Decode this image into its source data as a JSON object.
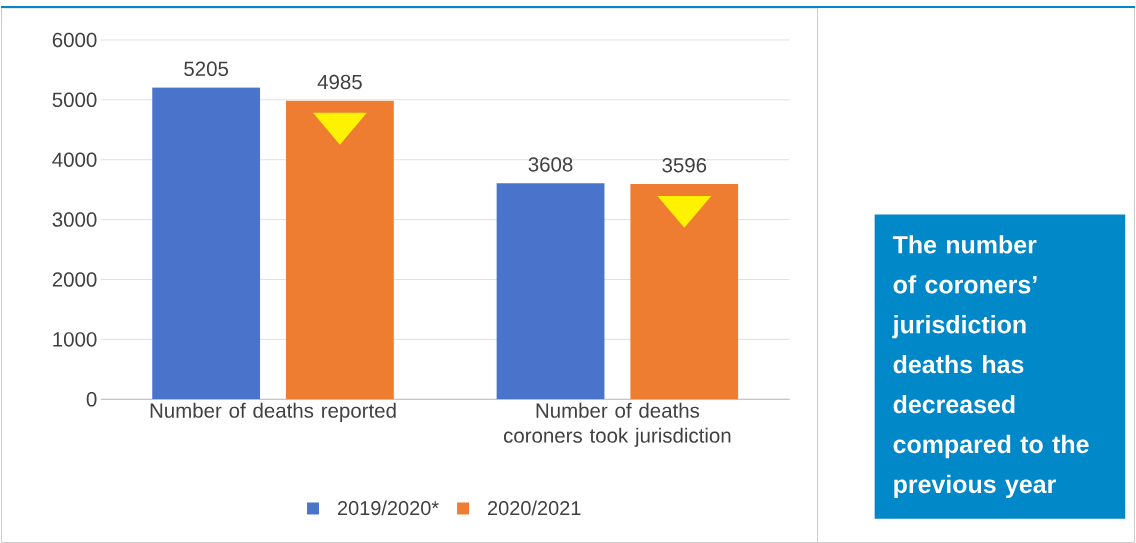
{
  "chart_data": {
    "type": "bar",
    "categories": [
      "Number of deaths reported",
      "Number of deaths coroners took jurisdiction"
    ],
    "series": [
      {
        "name": "2019/2020*",
        "color": "#4a74cc",
        "values": [
          5205,
          3608
        ]
      },
      {
        "name": "2020/2021",
        "color": "#ee7d32",
        "values": [
          4985,
          3596
        ]
      }
    ],
    "ylim": [
      0,
      6000
    ],
    "yticks": [
      0,
      1000,
      2000,
      3000,
      4000,
      5000,
      6000
    ],
    "grid": "y",
    "legend": "bottom",
    "data_labels": true,
    "annotations": [
      "The number of coroners’ jurisdiction deaths has decreased compared to the previous year"
    ]
  }
}
